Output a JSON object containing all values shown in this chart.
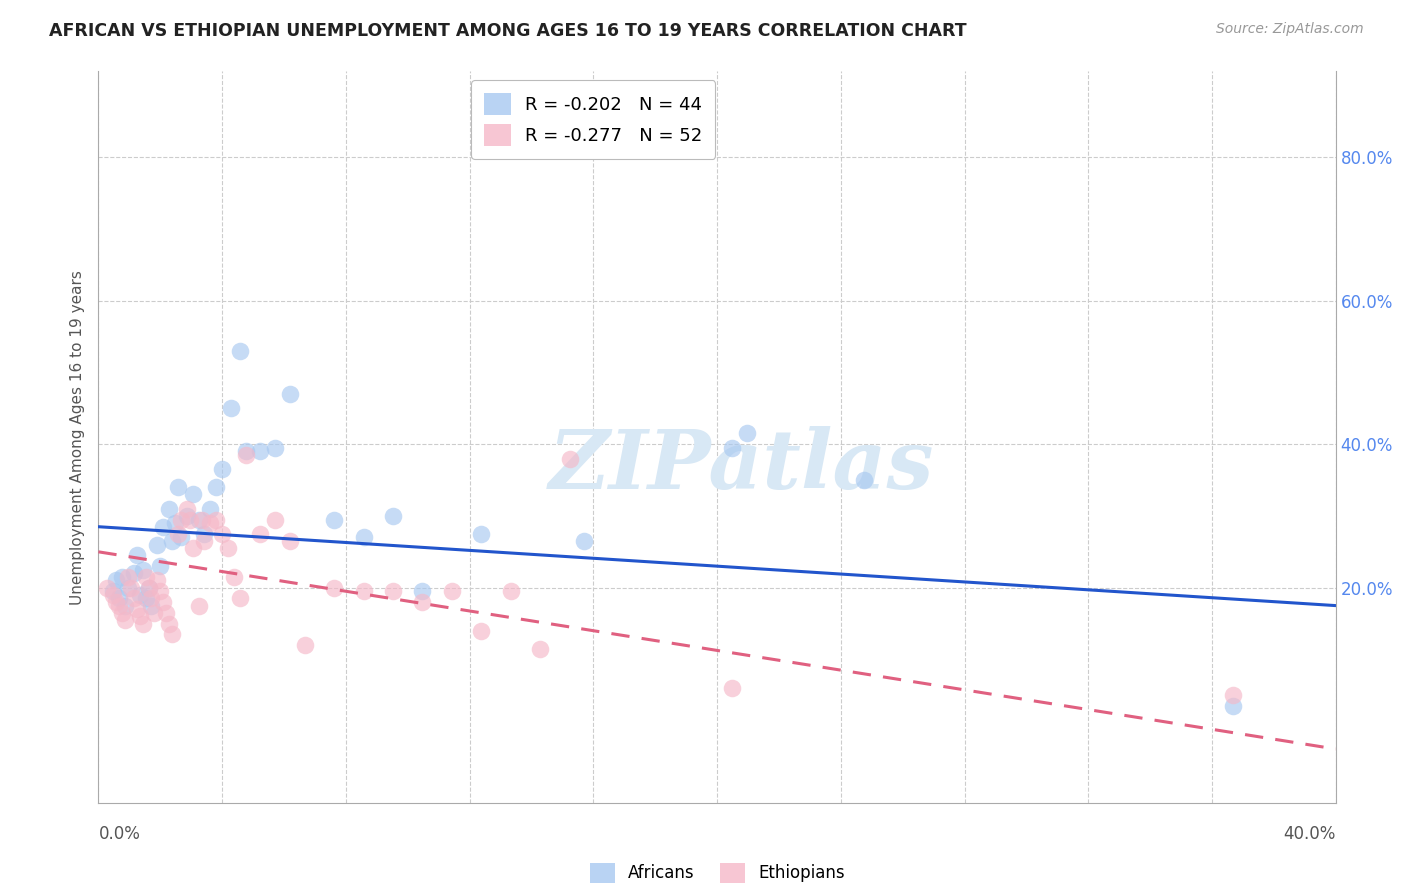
{
  "title": "AFRICAN VS ETHIOPIAN UNEMPLOYMENT AMONG AGES 16 TO 19 YEARS CORRELATION CHART",
  "source": "Source: ZipAtlas.com",
  "ylabel": "Unemployment Among Ages 16 to 19 years",
  "legend_african_r": "R = -0.202",
  "legend_african_n": "N = 44",
  "legend_ethiopian_r": "R = -0.277",
  "legend_ethiopian_n": "N = 52",
  "african_color": "#a8c8f0",
  "ethiopian_color": "#f5b8c8",
  "african_line_color": "#2255cc",
  "ethiopian_line_color": "#e06080",
  "background_color": "#ffffff",
  "grid_color": "#cccccc",
  "title_color": "#222222",
  "right_tick_color": "#5588ee",
  "watermark_color": "#d8e8f5",
  "xlim": [
    0.0,
    0.42
  ],
  "ylim": [
    -0.1,
    0.92
  ],
  "right_ytick_vals": [
    0.2,
    0.4,
    0.6,
    0.8
  ],
  "right_ytick_labels": [
    "20.0%",
    "40.0%",
    "60.0%",
    "80.0%"
  ],
  "africans_x": [
    0.005,
    0.006,
    0.007,
    0.008,
    0.009,
    0.01,
    0.012,
    0.013,
    0.014,
    0.015,
    0.016,
    0.017,
    0.018,
    0.02,
    0.021,
    0.022,
    0.024,
    0.025,
    0.026,
    0.027,
    0.028,
    0.03,
    0.032,
    0.034,
    0.036,
    0.038,
    0.04,
    0.042,
    0.045,
    0.048,
    0.05,
    0.055,
    0.06,
    0.065,
    0.08,
    0.09,
    0.1,
    0.11,
    0.13,
    0.165,
    0.215,
    0.22,
    0.26,
    0.385
  ],
  "africans_y": [
    0.195,
    0.21,
    0.185,
    0.215,
    0.175,
    0.2,
    0.22,
    0.245,
    0.19,
    0.225,
    0.185,
    0.2,
    0.175,
    0.26,
    0.23,
    0.285,
    0.31,
    0.265,
    0.29,
    0.34,
    0.27,
    0.3,
    0.33,
    0.295,
    0.275,
    0.31,
    0.34,
    0.365,
    0.45,
    0.53,
    0.39,
    0.39,
    0.395,
    0.47,
    0.295,
    0.27,
    0.3,
    0.195,
    0.275,
    0.265,
    0.395,
    0.415,
    0.35,
    0.035
  ],
  "ethiopians_x": [
    0.003,
    0.005,
    0.006,
    0.007,
    0.008,
    0.009,
    0.01,
    0.011,
    0.012,
    0.013,
    0.014,
    0.015,
    0.016,
    0.017,
    0.018,
    0.019,
    0.02,
    0.021,
    0.022,
    0.023,
    0.024,
    0.025,
    0.027,
    0.028,
    0.03,
    0.031,
    0.032,
    0.034,
    0.035,
    0.036,
    0.038,
    0.04,
    0.042,
    0.044,
    0.046,
    0.048,
    0.05,
    0.055,
    0.06,
    0.065,
    0.07,
    0.08,
    0.09,
    0.1,
    0.11,
    0.12,
    0.13,
    0.14,
    0.15,
    0.16,
    0.215,
    0.385
  ],
  "ethiopians_y": [
    0.2,
    0.19,
    0.18,
    0.175,
    0.165,
    0.155,
    0.215,
    0.2,
    0.185,
    0.17,
    0.16,
    0.15,
    0.215,
    0.2,
    0.185,
    0.165,
    0.21,
    0.195,
    0.18,
    0.165,
    0.15,
    0.135,
    0.275,
    0.295,
    0.31,
    0.295,
    0.255,
    0.175,
    0.295,
    0.265,
    0.29,
    0.295,
    0.275,
    0.255,
    0.215,
    0.185,
    0.385,
    0.275,
    0.295,
    0.265,
    0.12,
    0.2,
    0.195,
    0.195,
    0.18,
    0.195,
    0.14,
    0.195,
    0.115,
    0.38,
    0.06,
    0.05
  ],
  "african_trend_x": [
    0.0,
    0.42
  ],
  "african_trend_y": [
    0.285,
    0.175
  ],
  "ethiopian_trend_x": [
    0.0,
    0.42
  ],
  "ethiopian_trend_y": [
    0.25,
    -0.025
  ]
}
